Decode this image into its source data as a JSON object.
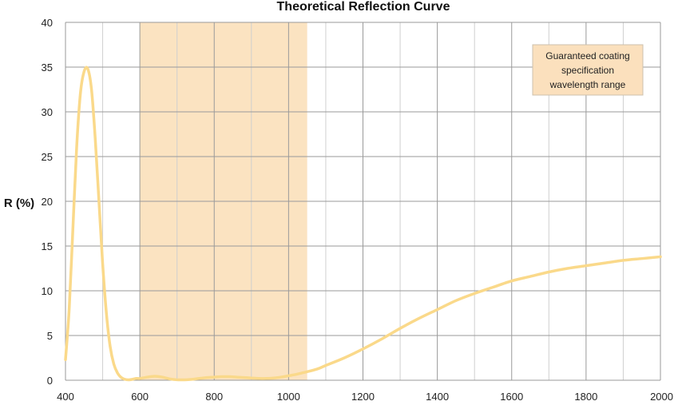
{
  "chart_data": {
    "type": "line",
    "title": "Theoretical Reflection Curve",
    "xlabel": "",
    "ylabel": "R (%)",
    "xlim": [
      400,
      2000
    ],
    "ylim": [
      0,
      40
    ],
    "x_ticks": [
      400,
      600,
      800,
      1000,
      1200,
      1400,
      1600,
      1800,
      2000
    ],
    "y_ticks": [
      0,
      5,
      10,
      15,
      20,
      25,
      30,
      35,
      40
    ],
    "x_minor_step": 100,
    "grid": true,
    "line_color": "#fad98a",
    "band_color": "#fbe3c1",
    "band": {
      "x_start": 600,
      "x_end": 1050
    },
    "annotation": {
      "lines": [
        "Guaranteed coating",
        "specification",
        "wavelength range"
      ],
      "position": "top-right",
      "fill": "#fbe0bd"
    },
    "series": [
      {
        "x": [
          400,
          410,
          420,
          430,
          440,
          450,
          460,
          470,
          480,
          490,
          500,
          510,
          520,
          530,
          540,
          550,
          560,
          570,
          580,
          590,
          600,
          620,
          640,
          660,
          680,
          700,
          720,
          740,
          760,
          780,
          800,
          820,
          840,
          860,
          880,
          900,
          920,
          940,
          960,
          980,
          1000,
          1020,
          1040,
          1060,
          1080,
          1100,
          1150,
          1200,
          1250,
          1300,
          1350,
          1400,
          1450,
          1500,
          1550,
          1600,
          1650,
          1700,
          1750,
          1800,
          1850,
          1900,
          1950,
          2000
        ],
        "values": [
          2.3,
          8,
          17,
          26,
          32,
          34.5,
          34.8,
          32.5,
          27,
          20,
          13,
          7.5,
          3.8,
          1.8,
          0.8,
          0.3,
          0.1,
          0.05,
          0.1,
          0.2,
          0.2,
          0.35,
          0.45,
          0.35,
          0.15,
          0.05,
          0.05,
          0.1,
          0.2,
          0.3,
          0.35,
          0.4,
          0.4,
          0.35,
          0.3,
          0.25,
          0.2,
          0.2,
          0.25,
          0.35,
          0.5,
          0.65,
          0.85,
          1.05,
          1.3,
          1.65,
          2.5,
          3.5,
          4.6,
          5.8,
          6.9,
          7.9,
          8.9,
          9.7,
          10.4,
          11.1,
          11.6,
          12.1,
          12.5,
          12.8,
          13.1,
          13.4,
          13.6,
          13.8
        ]
      }
    ]
  }
}
